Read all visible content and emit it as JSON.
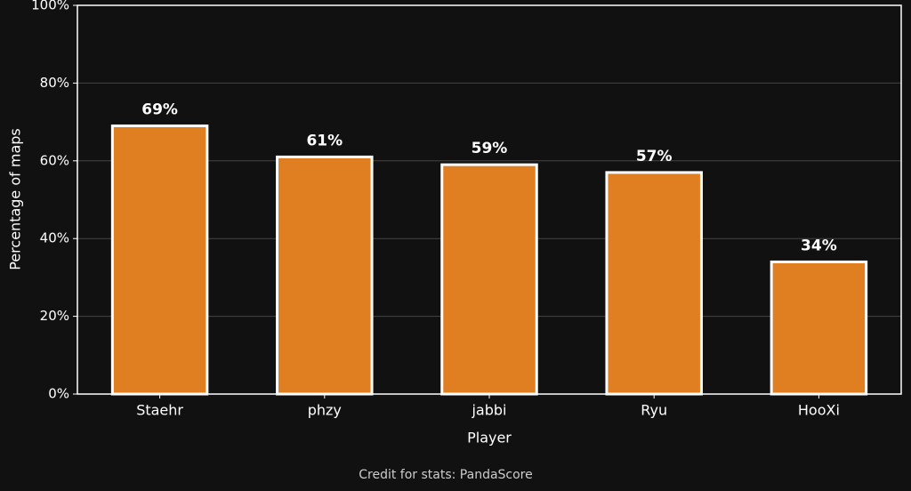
{
  "chart_data": {
    "type": "bar",
    "xlabel": "Player",
    "ylabel": "Percentage of maps",
    "caption": "Credit for stats: PandaScore",
    "categories": [
      "Staehr",
      "phzy",
      "jabbi",
      "Ryu",
      "HooXi"
    ],
    "values": [
      69,
      61,
      59,
      57,
      34
    ],
    "value_labels": [
      "69%",
      "61%",
      "59%",
      "57%",
      "34%"
    ],
    "color": "#e07e22",
    "ylim": [
      0,
      100
    ],
    "yticks": [
      {
        "value": 0,
        "label": "0%"
      },
      {
        "value": 20,
        "label": "20%"
      },
      {
        "value": 40,
        "label": "40%"
      },
      {
        "value": 60,
        "label": "60%"
      },
      {
        "value": 80,
        "label": "80%"
      },
      {
        "value": 100,
        "label": "100%"
      }
    ],
    "grid": true
  }
}
